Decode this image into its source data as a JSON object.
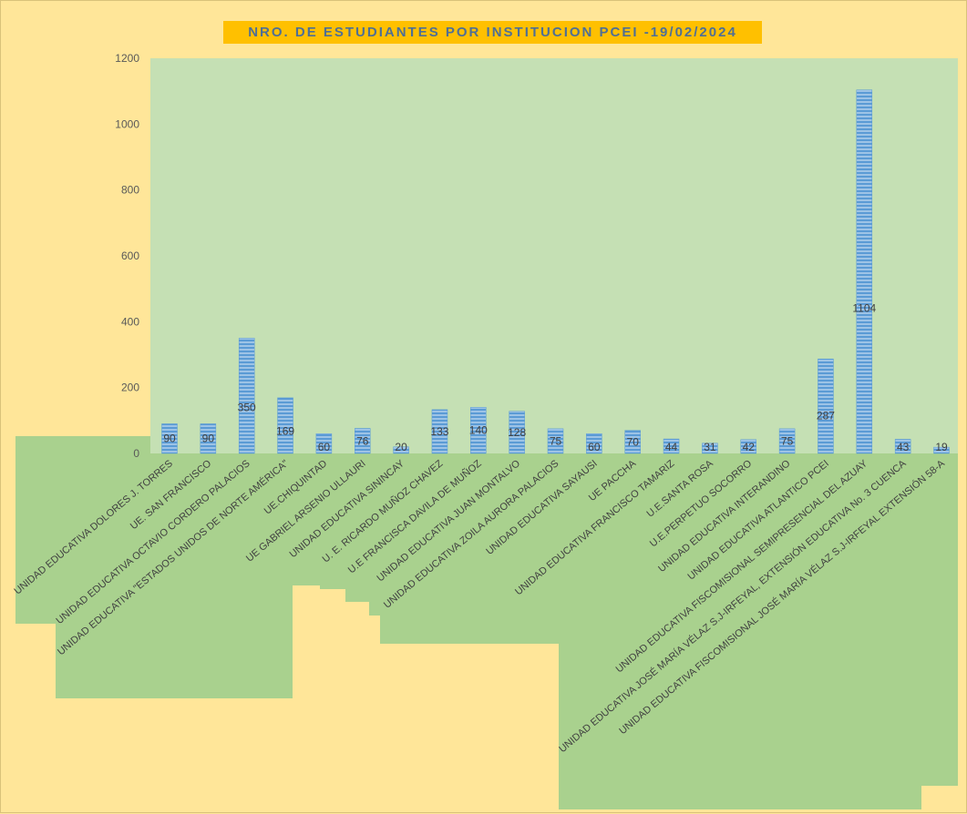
{
  "chart_data": {
    "type": "bar",
    "title": "NRO. DE ESTUDIANTES POR INSTITUCION PCEI -19/02/2024",
    "xlabel": "",
    "ylabel": "",
    "ylim": [
      0,
      1200
    ],
    "yticks": [
      0,
      200,
      400,
      600,
      800,
      1000,
      1200
    ],
    "grid": false,
    "legend": "none",
    "data_labels": true,
    "categories": [
      "UNIDAD EDUCATIVA DOLORES J. TORRES",
      "UE. SAN FRANCISCO",
      "UNIDAD EDUCATIVA OCTAVIO CORDERO PALACIOS",
      "UNIDAD EDUCATIVA \"ESTADOS UNIDOS DE NORTE AMÉRICA\"",
      "UE.CHIQUINTAD",
      "UE GABRIEL ARSENIO ULLAURI",
      "UNIDAD EDUCATIVA SININCAY",
      "U. E. RICARDO MUÑOZ CHAVEZ",
      "U.E FRANCISCA DAVILA DE MUÑOZ",
      "UNIDAD EDUCATIVA JUAN MONTALVO",
      "UNIDAD EDUCATIVA ZOILA AURORA PALACIOS",
      "UNIDAD EDUCATIVA SAYAUSI",
      "UE PACCHA",
      "UNIDAD EDUCATIVA FRANCISCO TAMARIZ",
      "U.E.SANTA ROSA",
      "U.E.PERPETUO SOCORRO",
      "UNIDAD EDUCATIVA INTERANDINO",
      "UNIDAD EDUCATIVA ATLANTICO PCEI",
      "UNIDAD EDUCATIVA FISCOMISIONAL SEMIPRESENCIAL DEL AZUAY",
      "UNIDAD EDUCATIVA JOSÉ MARÍA VÉLAZ S.J-IRFEYAL, EXTENSIÓN EDUCATIVA No. 3 CUENCA",
      "UNIDAD EDUCATIVA FISCOMISIONAL JOSÉ MARÍA VÉLAZ S.J-IRFEYAL EXTENSIÓN 58-A"
    ],
    "values": [
      90,
      90,
      350,
      169,
      60,
      76,
      20,
      133,
      140,
      128,
      75,
      60,
      70,
      44,
      31,
      42,
      75,
      287,
      1104,
      43,
      19
    ],
    "colors": {
      "plot_bg": "#c5e0b4",
      "label_bg": "#a9d18e",
      "bar": "#5b9bd5",
      "page_bg": "#ffe699",
      "title_bg": "#ffc000",
      "title_text": "#4f6f95"
    }
  }
}
